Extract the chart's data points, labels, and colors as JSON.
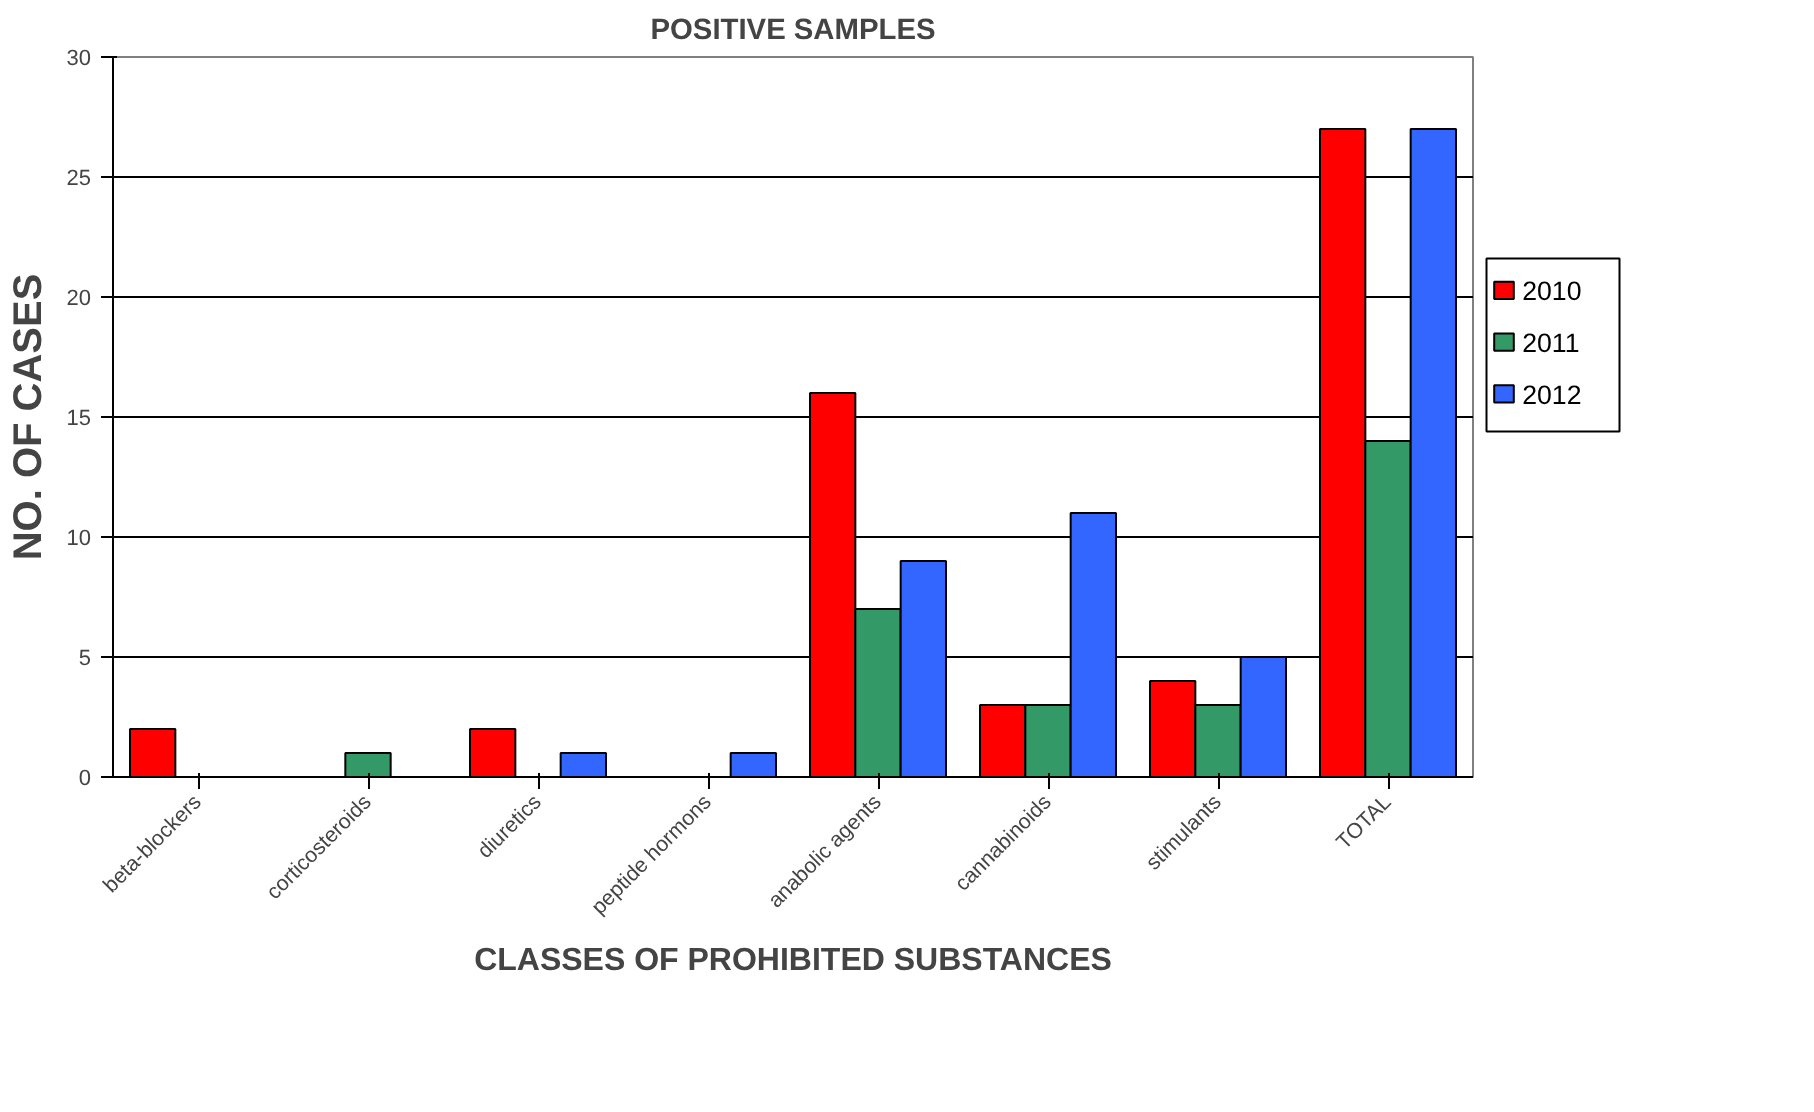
{
  "chart_data": {
    "type": "bar",
    "title": "POSITIVE SAMPLES",
    "xlabel": "CLASSES OF PROHIBITED SUBSTANCES",
    "ylabel": "NO. OF CASES",
    "categories": [
      "beta-blockers",
      "corticosteroids",
      "diuretics",
      "peptide hormons",
      "anabolic agents",
      "cannabinoids",
      "stimulants",
      "TOTAL"
    ],
    "series": [
      {
        "name": "2010",
        "color": "#ff0000",
        "values": [
          2,
          0,
          2,
          0,
          16,
          3,
          4,
          27
        ]
      },
      {
        "name": "2011",
        "color": "#339966",
        "values": [
          0,
          1,
          0,
          0,
          7,
          3,
          3,
          14
        ]
      },
      {
        "name": "2012",
        "color": "#3366ff",
        "values": [
          0,
          0,
          1,
          1,
          9,
          11,
          5,
          27
        ]
      }
    ],
    "ylim": [
      0,
      30
    ],
    "yticks": [
      0,
      5,
      10,
      15,
      20,
      25,
      30
    ],
    "grid": "y",
    "legend": "right"
  }
}
